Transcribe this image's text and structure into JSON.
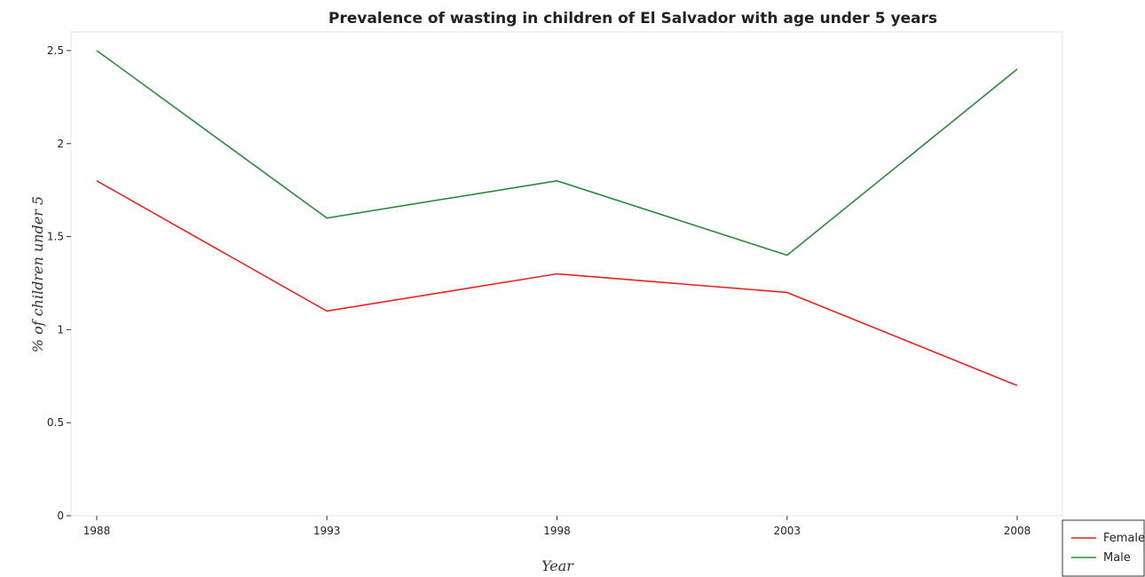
{
  "chart_data": {
    "type": "line",
    "title": "Prevalence of wasting in children of El Salvador with age under 5 years",
    "xlabel": "Year",
    "ylabel": "% of children under 5",
    "categories": [
      "1988",
      "1993",
      "1998",
      "2003",
      "2008"
    ],
    "ylim": [
      0,
      2.6
    ],
    "yticks": [
      0,
      0.5,
      1,
      1.5,
      2,
      2.5
    ],
    "ytick_labels": [
      "0",
      "0.5",
      "1",
      "1.5",
      "2",
      "2.5"
    ],
    "grid": false,
    "legend": "bottom-right",
    "series": [
      {
        "name": "Female",
        "color": "#e8231f",
        "values": [
          1.8,
          1.1,
          1.3,
          1.2,
          0.7
        ]
      },
      {
        "name": "Male",
        "color": "#2a8a3b",
        "values": [
          2.5,
          1.6,
          1.8,
          1.4,
          2.4
        ]
      }
    ]
  }
}
